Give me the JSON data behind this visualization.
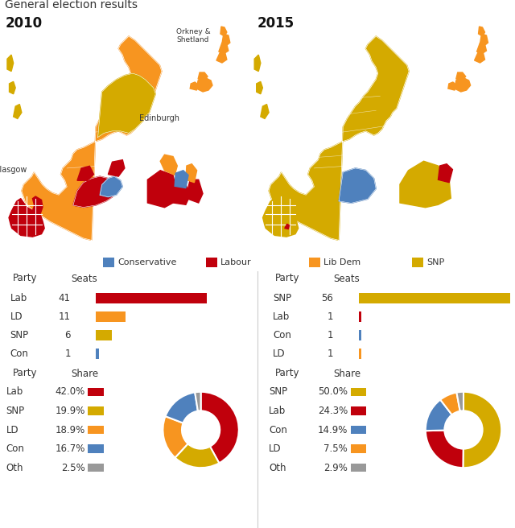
{
  "title": "General election results",
  "year_2010": "2010",
  "year_2015": "2015",
  "legend_items": [
    {
      "label": "Conservative",
      "color": "#4f81bd"
    },
    {
      "label": "Labour",
      "color": "#c0000c"
    },
    {
      "label": "Lib Dem",
      "color": "#f79520"
    },
    {
      "label": "SNP",
      "color": "#d4aa00"
    }
  ],
  "seats_2010": {
    "parties": [
      "Lab",
      "LD",
      "SNP",
      "Con"
    ],
    "values": [
      41,
      11,
      6,
      1
    ],
    "colors": [
      "#c0000c",
      "#f79520",
      "#d4aa00",
      "#4f81bd"
    ],
    "max_val": 56
  },
  "seats_2015": {
    "parties": [
      "SNP",
      "Lab",
      "Con",
      "LD"
    ],
    "values": [
      56,
      1,
      1,
      1
    ],
    "colors": [
      "#d4aa00",
      "#c0000c",
      "#4f81bd",
      "#f79520"
    ],
    "max_val": 56
  },
  "share_2010": {
    "parties": [
      "Lab",
      "SNP",
      "LD",
      "Con",
      "Oth"
    ],
    "values": [
      42.0,
      19.9,
      18.9,
      16.7,
      2.5
    ],
    "colors": [
      "#c0000c",
      "#d4aa00",
      "#f79520",
      "#4f81bd",
      "#999999"
    ]
  },
  "share_2015": {
    "parties": [
      "SNP",
      "Lab",
      "Con",
      "LD",
      "Oth"
    ],
    "values": [
      50.0,
      24.3,
      14.9,
      7.5,
      2.9
    ],
    "colors": [
      "#d4aa00",
      "#c0000c",
      "#4f81bd",
      "#f79520",
      "#999999"
    ]
  },
  "white": "#ffffff",
  "light_gray": "#f0f0f0",
  "mid_gray": "#cccccc",
  "text_color": "#333333"
}
